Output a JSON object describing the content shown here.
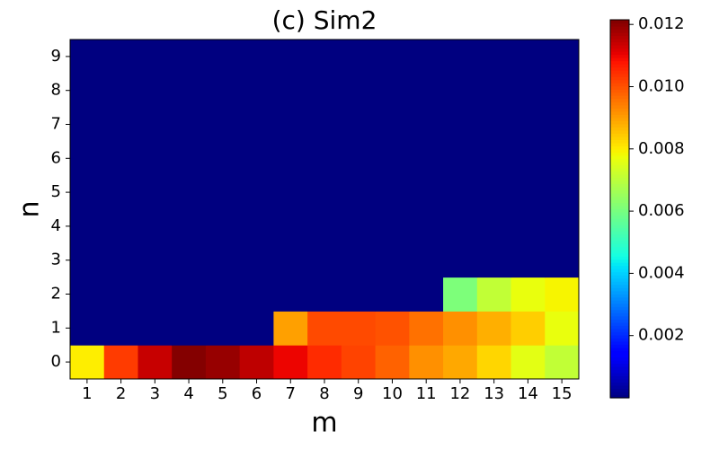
{
  "chart_data": {
    "type": "heatmap",
    "title": "(c) Sim2",
    "x_label": "m",
    "y_label": "n",
    "x": [
      "1",
      "2",
      "3",
      "4",
      "5",
      "6",
      "7",
      "8",
      "9",
      "10",
      "11",
      "12",
      "13",
      "14",
      "15"
    ],
    "y": [
      "0",
      "1",
      "2",
      "3",
      "4",
      "5",
      "6",
      "7",
      "8",
      "9"
    ],
    "z": [
      [
        0.008,
        0.0103,
        0.0114,
        0.0121,
        0.0119,
        0.0115,
        0.011,
        0.0105,
        0.0102,
        0.0098,
        0.0092,
        0.0089,
        0.0083,
        0.0076,
        0.0071
      ],
      [
        0,
        0,
        0,
        0,
        0,
        0,
        0.009,
        0.0101,
        0.0101,
        0.01,
        0.0096,
        0.0092,
        0.0088,
        0.0084,
        0.0077
      ],
      [
        0,
        0,
        0,
        0,
        0,
        0,
        0,
        0,
        0,
        0,
        0,
        0.0061,
        0.0071,
        0.0077,
        0.0079
      ],
      [
        0,
        0,
        0,
        0,
        0,
        0,
        0,
        0,
        0,
        0,
        0,
        0,
        0,
        0,
        0
      ],
      [
        0,
        0,
        0,
        0,
        0,
        0,
        0,
        0,
        0,
        0,
        0,
        0,
        0,
        0,
        0
      ],
      [
        0,
        0,
        0,
        0,
        0,
        0,
        0,
        0,
        0,
        0,
        0,
        0,
        0,
        0,
        0
      ],
      [
        0,
        0,
        0,
        0,
        0,
        0,
        0,
        0,
        0,
        0,
        0,
        0,
        0,
        0,
        0
      ],
      [
        0,
        0,
        0,
        0,
        0,
        0,
        0,
        0,
        0,
        0,
        0,
        0,
        0,
        0,
        0
      ],
      [
        0,
        0,
        0,
        0,
        0,
        0,
        0,
        0,
        0,
        0,
        0,
        0,
        0,
        0,
        0
      ],
      [
        0,
        0,
        0,
        0,
        0,
        0,
        0,
        0,
        0,
        0,
        0,
        0,
        0,
        0,
        0
      ]
    ],
    "colormap": "jet",
    "zlim": [
      0,
      0.01215
    ],
    "zticks": [
      0.002,
      0.004,
      0.006,
      0.008,
      {
        "value": 0.01,
        "label": "0.010"
      },
      0.012
    ]
  }
}
